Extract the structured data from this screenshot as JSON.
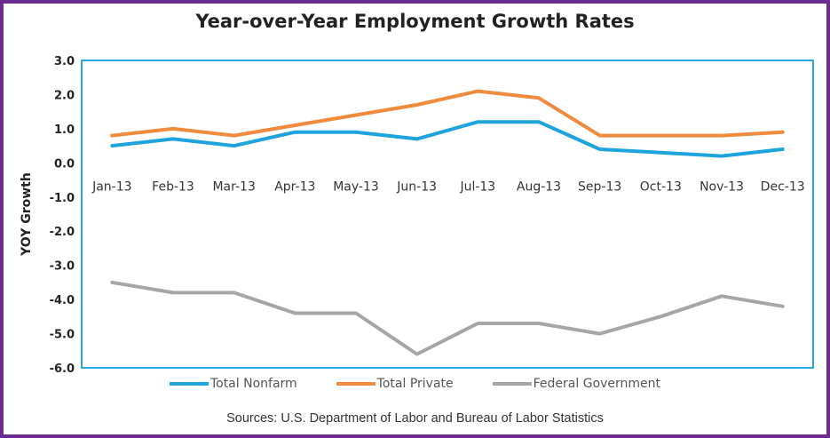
{
  "chart_data": {
    "type": "line",
    "title": "Year-over-Year Employment Growth Rates",
    "ylabel": "YOY Growth",
    "xlabel": "",
    "categories": [
      "Jan-13",
      "Feb-13",
      "Mar-13",
      "Apr-13",
      "May-13",
      "Jun-13",
      "Jul-13",
      "Aug-13",
      "Sep-13",
      "Oct-13",
      "Nov-13",
      "Dec-13"
    ],
    "ylim": [
      -6.0,
      3.0
    ],
    "yticks": [
      "3.0",
      "2.0",
      "1.0",
      "0.0",
      "-1.0",
      "-2.0",
      "-3.0",
      "-4.0",
      "-5.0",
      "-6.0"
    ],
    "ytick_values": [
      3,
      2,
      1,
      0,
      -1,
      -2,
      -3,
      -4,
      -5,
      -6
    ],
    "grid": false,
    "legend_position": "bottom",
    "series": [
      {
        "name": "Total Nonfarm",
        "color": "#1fa3dc",
        "values": [
          0.5,
          0.7,
          0.5,
          0.9,
          0.9,
          0.7,
          1.2,
          1.2,
          0.4,
          0.3,
          0.2,
          0.4
        ]
      },
      {
        "name": "Total Private",
        "color": "#f08a3c",
        "values": [
          0.8,
          1.0,
          0.8,
          1.1,
          1.4,
          1.7,
          2.1,
          1.9,
          0.8,
          0.8,
          0.8,
          0.9
        ]
      },
      {
        "name": "Federal Government",
        "color": "#a6a6a6",
        "values": [
          -3.5,
          -3.8,
          -3.8,
          -4.4,
          -4.4,
          -5.6,
          -4.7,
          -4.7,
          -5.0,
          -4.5,
          -3.9,
          -4.2
        ]
      }
    ],
    "source": "Sources: U.S. Department of Labor and Bureau of Labor Statistics"
  },
  "colors": {
    "frame_border": "#6a2c8e",
    "plot_border": "#29a8df"
  }
}
